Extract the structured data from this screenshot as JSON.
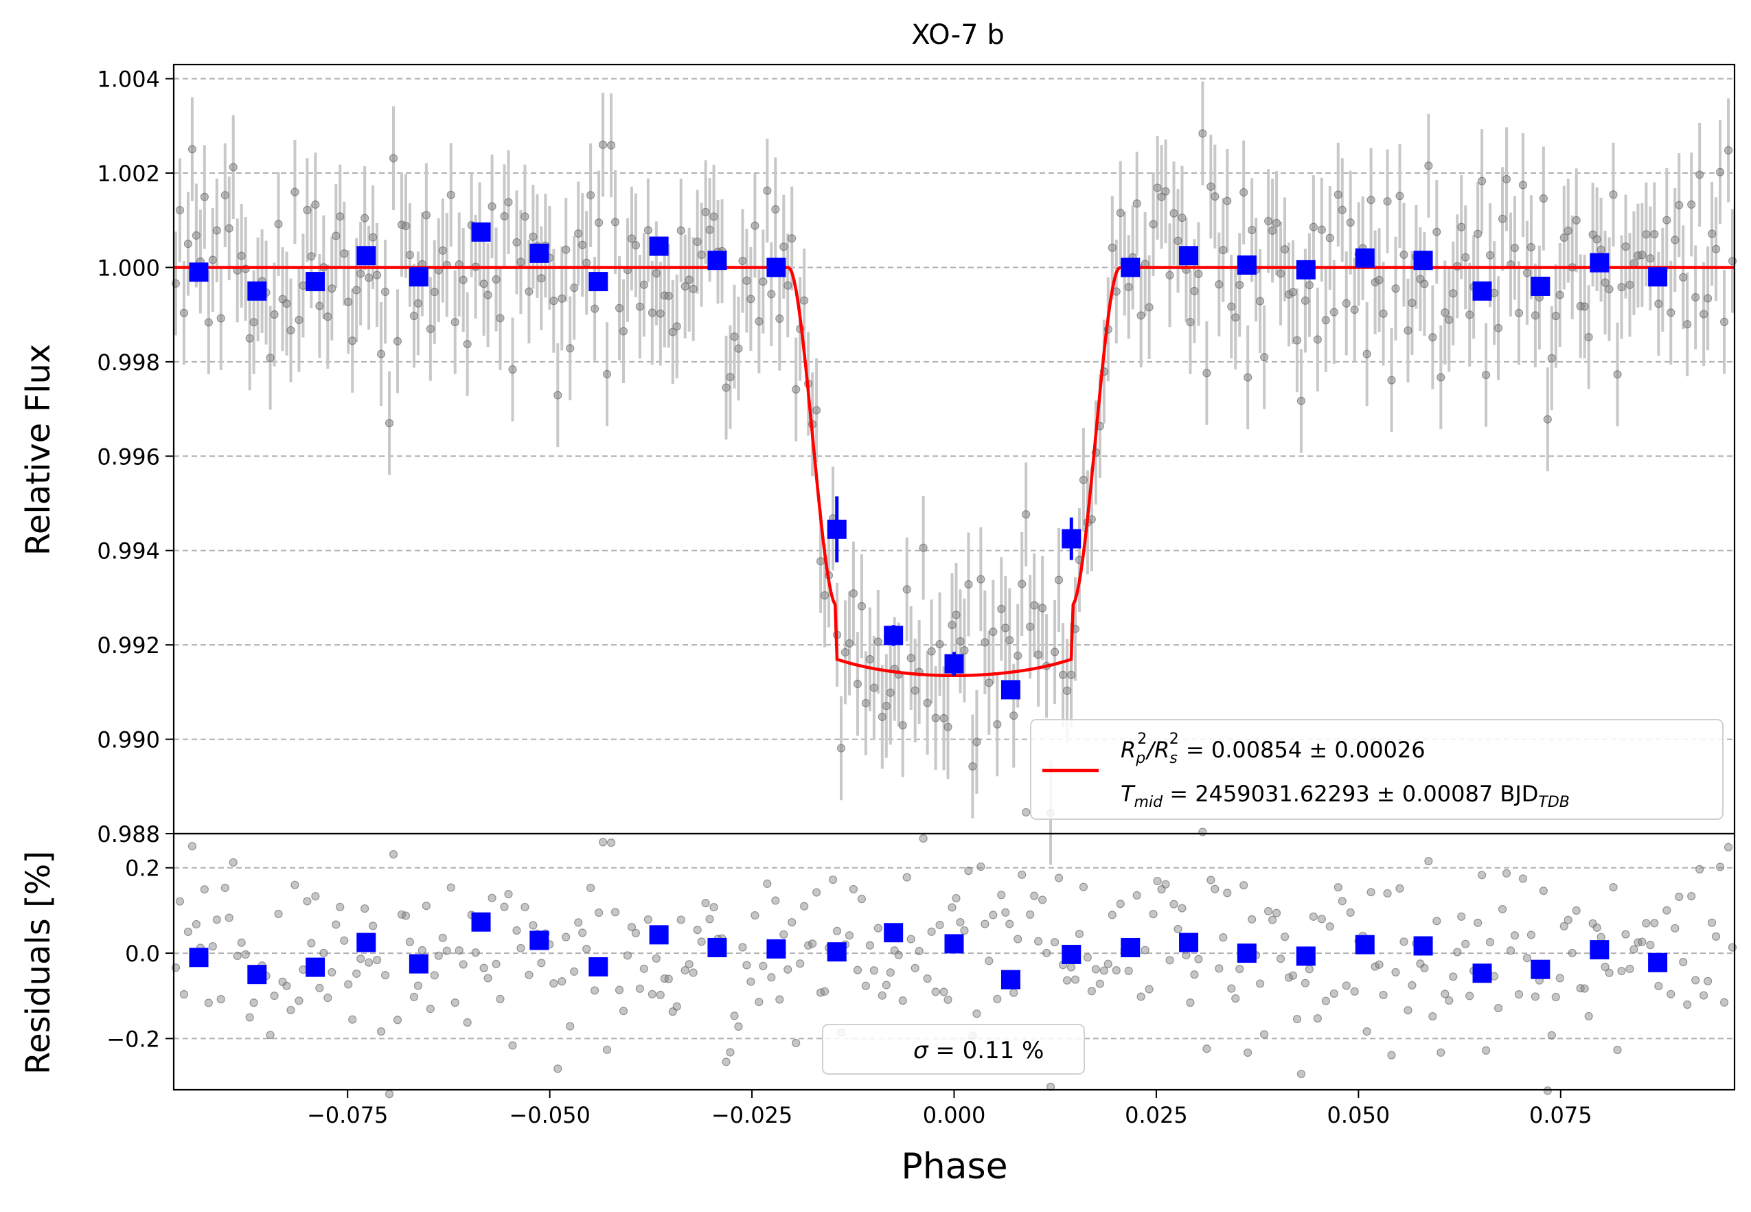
{
  "chart_data": [
    {
      "panel": "top",
      "type": "scatter",
      "title": "XO-7 b",
      "xlabel": "",
      "ylabel": "Relative Flux",
      "xlim": [
        -0.0965,
        0.0965
      ],
      "ylim": [
        0.988,
        1.0043
      ],
      "y_ticks": [
        "0.988",
        "0.990",
        "0.992",
        "0.994",
        "0.996",
        "0.998",
        "1.000",
        "1.002",
        "1.004"
      ],
      "grid": "horizontal dashed",
      "legend_position": "lower-right",
      "legend_lines": [
        {
          "pre": "R",
          "sub1": "p",
          "sup1": "2",
          "slash": "/R",
          "sub2": "s",
          "sup2": "2",
          "rest": " = 0.00854 ± 0.00026"
        },
        {
          "pre": "T",
          "sub1": "mid",
          "rest": " = 2459031.62293 ± 0.00087 BJD",
          "sub2": "TDB"
        }
      ],
      "series": [
        {
          "name": "model",
          "type": "line",
          "color": "#ff0000",
          "transit_params": {
            "rp2_rs2": 0.00854,
            "t_full_half": 0.0145,
            "t_total_half": 0.0205,
            "depth_center": 0.00865
          }
        },
        {
          "type": "scatter",
          "color": "#0000ff",
          "marker": "square",
          "x": [
            -0.0934,
            -0.0862,
            -0.079,
            -0.0727,
            -0.0662,
            -0.0585,
            -0.0513,
            -0.044,
            -0.0365,
            -0.0293,
            -0.022,
            -0.0145,
            -0.0075,
            0.0,
            0.007,
            0.0145,
            0.0218,
            0.029,
            0.0362,
            0.0435,
            0.0508,
            0.058,
            0.0653,
            0.0725,
            0.0798,
            0.087
          ],
          "y": [
            0.9999,
            0.9995,
            0.9997,
            1.00025,
            0.9998,
            1.00075,
            1.0003,
            0.9997,
            1.00045,
            1.00015,
            1.0,
            0.99445,
            0.9922,
            0.9916,
            0.99105,
            0.99425,
            1.0,
            1.00025,
            1.00005,
            0.99995,
            1.0002,
            1.00015,
            0.9995,
            0.9996,
            1.0001,
            0.9998
          ],
          "yerr": [
            0.0002,
            0.0002,
            0.0002,
            0.0002,
            0.0002,
            0.0002,
            0.0002,
            0.0002,
            0.0002,
            0.0002,
            0.0002,
            0.0007,
            0.00022,
            0.00025,
            0.0002,
            0.00045,
            0.0002,
            0.0002,
            0.0002,
            0.0002,
            0.0002,
            0.0002,
            0.0002,
            0.0002,
            0.0002,
            0.0002
          ]
        },
        {
          "type": "scatter",
          "color": "#808080",
          "marker": "circle",
          "n_points": 380,
          "residual_rms_percent": 0.11,
          "errorbar_size": 0.0011
        }
      ]
    },
    {
      "panel": "bottom",
      "type": "scatter",
      "xlabel": "Phase",
      "ylabel": "Residuals [%]",
      "xlim": [
        -0.0965,
        0.0965
      ],
      "ylim": [
        -0.32,
        0.28
      ],
      "x_ticks": [
        "−0.075",
        "−0.050",
        "−0.025",
        "0.000",
        "0.025",
        "0.050",
        "0.075"
      ],
      "y_ticks": [
        "−0.2",
        "0.0",
        "0.2"
      ],
      "grid": "horizontal dashed",
      "legend_position": "lower-center",
      "legend_text": {
        "sym": "σ",
        "rest": " = 0.11 %"
      },
      "series": [
        {
          "type": "scatter",
          "color": "#0000ff",
          "marker": "square",
          "x": [
            -0.0934,
            -0.0862,
            -0.079,
            -0.0727,
            -0.0662,
            -0.0585,
            -0.0513,
            -0.044,
            -0.0365,
            -0.0293,
            -0.022,
            -0.0145,
            -0.0075,
            0.0,
            0.007,
            0.0145,
            0.0218,
            0.029,
            0.0362,
            0.0435,
            0.0508,
            0.058,
            0.0653,
            0.0725,
            0.0798,
            0.087
          ],
          "y": [
            -0.01,
            -0.05,
            -0.033,
            0.025,
            -0.025,
            0.073,
            0.03,
            -0.032,
            0.043,
            0.013,
            0.01,
            0.003,
            0.048,
            0.022,
            -0.062,
            -0.003,
            0.013,
            0.025,
            0.0,
            -0.007,
            0.02,
            0.017,
            -0.047,
            -0.038,
            0.008,
            -0.022
          ]
        },
        {
          "type": "scatter",
          "color": "#808080",
          "marker": "circle",
          "n_points": 380
        }
      ]
    }
  ]
}
